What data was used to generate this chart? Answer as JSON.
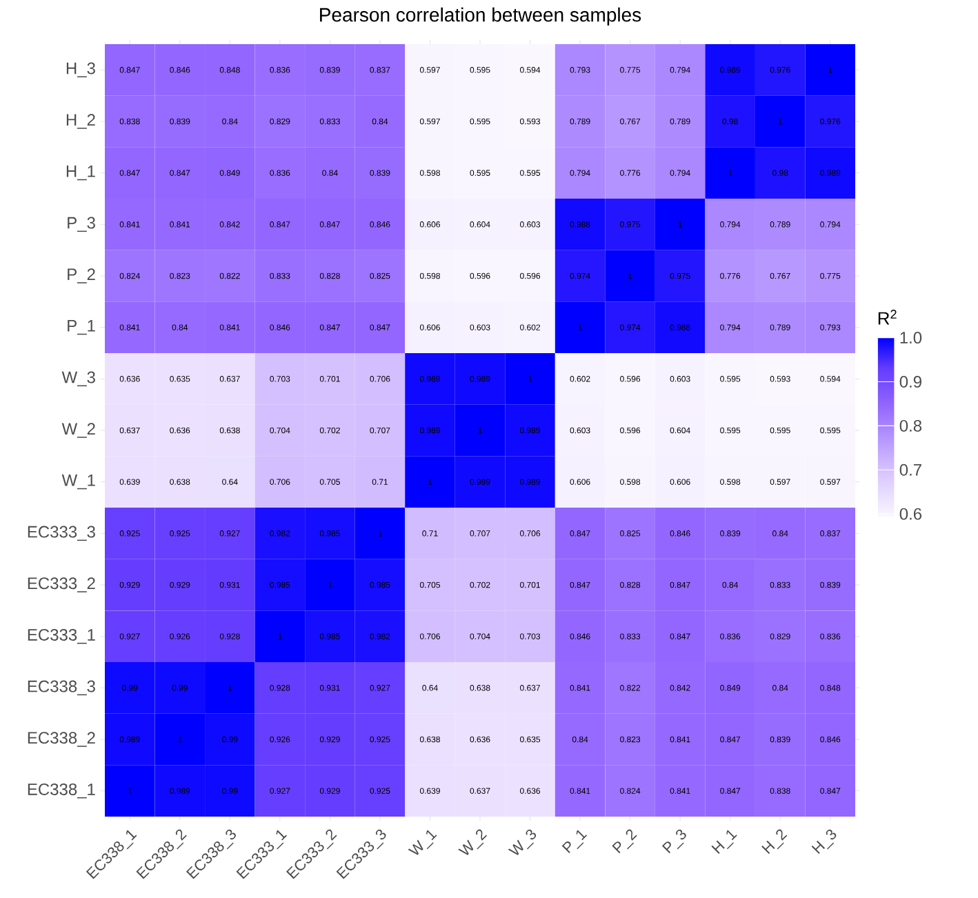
{
  "chart_data": {
    "type": "heatmap",
    "title": "Pearson correlation between samples",
    "clabel": "R$^{2}$",
    "categories": [
      "EC338_1",
      "EC338_2",
      "EC338_3",
      "EC333_1",
      "EC333_2",
      "EC333_3",
      "W_1",
      "W_2",
      "W_3",
      "P_1",
      "P_2",
      "P_3",
      "H_1",
      "H_2",
      "H_3"
    ],
    "y_categories": [
      "H_3",
      "H_2",
      "H_1",
      "P_3",
      "P_2",
      "P_1",
      "W_3",
      "W_2",
      "W_1",
      "EC333_3",
      "EC333_2",
      "EC333_1",
      "EC338_3",
      "EC338_2",
      "EC338_1"
    ],
    "cells": [
      [
        0.847,
        0.846,
        0.848,
        0.836,
        0.839,
        0.837,
        0.597,
        0.595,
        0.594,
        0.793,
        0.775,
        0.794,
        0.989,
        0.976,
        1
      ],
      [
        0.838,
        0.839,
        0.84,
        0.829,
        0.833,
        0.84,
        0.597,
        0.595,
        0.593,
        0.789,
        0.767,
        0.789,
        0.98,
        1,
        0.976
      ],
      [
        0.847,
        0.847,
        0.849,
        0.836,
        0.84,
        0.839,
        0.598,
        0.595,
        0.595,
        0.794,
        0.776,
        0.794,
        1,
        0.98,
        0.989
      ],
      [
        0.841,
        0.841,
        0.842,
        0.847,
        0.847,
        0.846,
        0.606,
        0.604,
        0.603,
        0.988,
        0.975,
        1,
        0.794,
        0.789,
        0.794
      ],
      [
        0.824,
        0.823,
        0.822,
        0.833,
        0.828,
        0.825,
        0.598,
        0.596,
        0.596,
        0.974,
        1,
        0.975,
        0.776,
        0.767,
        0.775
      ],
      [
        0.841,
        0.84,
        0.841,
        0.846,
        0.847,
        0.847,
        0.606,
        0.603,
        0.602,
        1,
        0.974,
        0.988,
        0.794,
        0.789,
        0.793
      ],
      [
        0.636,
        0.635,
        0.637,
        0.703,
        0.701,
        0.706,
        0.989,
        0.989,
        1,
        0.602,
        0.596,
        0.603,
        0.595,
        0.593,
        0.594
      ],
      [
        0.637,
        0.636,
        0.638,
        0.704,
        0.702,
        0.707,
        0.989,
        1,
        0.989,
        0.603,
        0.596,
        0.604,
        0.595,
        0.595,
        0.595
      ],
      [
        0.639,
        0.638,
        0.64,
        0.706,
        0.705,
        0.71,
        1,
        0.989,
        0.989,
        0.606,
        0.598,
        0.606,
        0.598,
        0.597,
        0.597
      ],
      [
        0.925,
        0.925,
        0.927,
        0.982,
        0.985,
        1,
        0.71,
        0.707,
        0.706,
        0.847,
        0.825,
        0.846,
        0.839,
        0.84,
        0.837
      ],
      [
        0.929,
        0.929,
        0.931,
        0.985,
        1,
        0.985,
        0.705,
        0.702,
        0.701,
        0.847,
        0.828,
        0.847,
        0.84,
        0.833,
        0.839
      ],
      [
        0.927,
        0.926,
        0.928,
        1,
        0.985,
        0.982,
        0.706,
        0.704,
        0.703,
        0.846,
        0.833,
        0.847,
        0.836,
        0.829,
        0.836
      ],
      [
        0.99,
        0.99,
        1,
        0.928,
        0.931,
        0.927,
        0.64,
        0.638,
        0.637,
        0.841,
        0.822,
        0.842,
        0.849,
        0.84,
        0.848
      ],
      [
        0.989,
        1,
        0.99,
        0.926,
        0.929,
        0.925,
        0.638,
        0.636,
        0.635,
        0.84,
        0.823,
        0.841,
        0.847,
        0.839,
        0.846
      ],
      [
        1,
        0.989,
        0.99,
        0.927,
        0.929,
        0.925,
        0.639,
        0.637,
        0.636,
        0.841,
        0.824,
        0.841,
        0.847,
        0.838,
        0.847
      ]
    ],
    "data_labels": true,
    "clim": [
      0.593,
      1.0
    ],
    "cticks": [
      {
        "value": 0.6,
        "label": "0.6"
      },
      {
        "value": 0.7,
        "label": "0.7"
      },
      {
        "value": 0.8,
        "label": "0.8"
      },
      {
        "value": 0.9,
        "label": "0.9"
      },
      {
        "value": 1.0,
        "label": "1.0"
      }
    ]
  }
}
